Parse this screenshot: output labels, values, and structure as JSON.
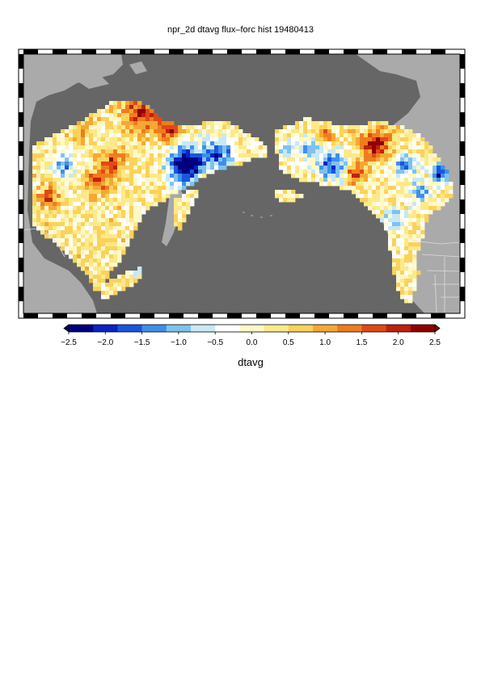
{
  "title": "npr_2d dtavg flux–forc hist 19480413",
  "colorbar": {
    "label": "dtavg",
    "min": -2.5,
    "max": 2.5,
    "tick_labels": [
      "−2.5",
      "−2.0",
      "−1.5",
      "−1.0",
      "−0.5",
      "0.0",
      "0.5",
      "1.0",
      "1.5",
      "2.0",
      "2.5"
    ],
    "tick_values": [
      -2.5,
      -2.0,
      -1.5,
      -1.0,
      -0.5,
      0.0,
      0.5,
      1.0,
      1.5,
      2.0,
      2.5
    ],
    "colors": [
      "#00007f",
      "#0b22c7",
      "#1a56e0",
      "#3f8fe8",
      "#7ec2ef",
      "#c8e8f5",
      "#ffffff",
      "#fff9c8",
      "#fde98a",
      "#fbd25a",
      "#f5a833",
      "#ef7d1f",
      "#df4a14",
      "#c1200c",
      "#8f0000"
    ]
  },
  "map": {
    "ocean_color": "#666666",
    "land_color": "#aaaaaa",
    "region": "North Pacific Rim"
  }
}
